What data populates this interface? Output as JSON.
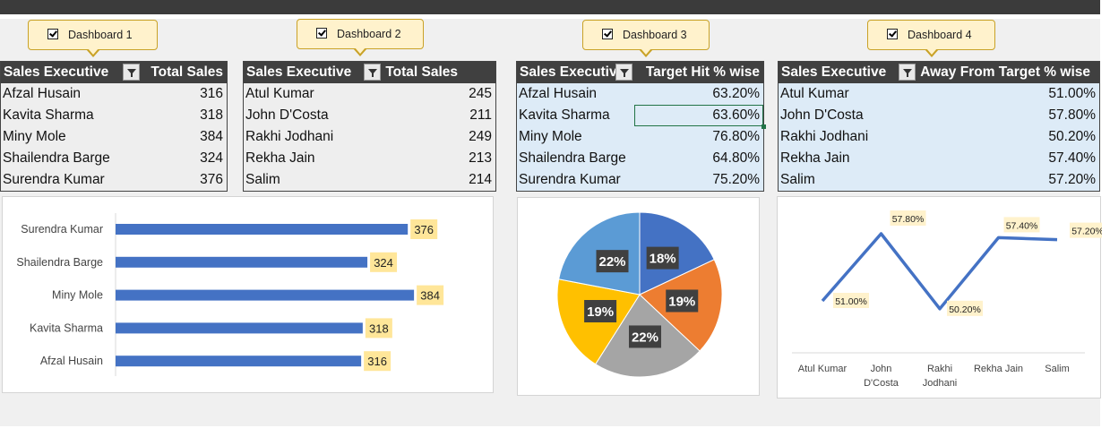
{
  "dashboards": [
    {
      "label": "Dashboard 1",
      "checked": true
    },
    {
      "label": "Dashboard 2",
      "checked": true
    },
    {
      "label": "Dashboard 3",
      "checked": true
    },
    {
      "label": "Dashboard 4",
      "checked": true
    }
  ],
  "tables": [
    {
      "headers": [
        "Sales Executive",
        "Total Sales"
      ],
      "rows": [
        [
          "Afzal Husain",
          "316"
        ],
        [
          "Kavita Sharma",
          "318"
        ],
        [
          "Miny Mole",
          "384"
        ],
        [
          "Shailendra Barge",
          "324"
        ],
        [
          "Surendra Kumar",
          "376"
        ]
      ]
    },
    {
      "headers": [
        "Sales Executive",
        "Total Sales"
      ],
      "rows": [
        [
          "Atul Kumar",
          "245"
        ],
        [
          "John D'Costa",
          "211"
        ],
        [
          "Rakhi Jodhani",
          "249"
        ],
        [
          "Rekha Jain",
          "213"
        ],
        [
          "Salim",
          "214"
        ]
      ]
    },
    {
      "headers": [
        "Sales Executiv",
        "Target Hit % wise"
      ],
      "rows": [
        [
          "Afzal Husain",
          "63.20%"
        ],
        [
          "Kavita Sharma",
          "63.60%"
        ],
        [
          "Miny Mole",
          "76.80%"
        ],
        [
          "Shailendra Barge",
          "64.80%"
        ],
        [
          "Surendra Kumar",
          "75.20%"
        ]
      ]
    },
    {
      "headers": [
        "Sales Executive",
        "Away From Target % wise"
      ],
      "rows": [
        [
          "Atul Kumar",
          "51.00%"
        ],
        [
          "John D'Costa",
          "57.80%"
        ],
        [
          "Rakhi Jodhani",
          "50.20%"
        ],
        [
          "Rekha Jain",
          "57.40%"
        ],
        [
          "Salim",
          "57.20%"
        ]
      ]
    }
  ],
  "chart_data": [
    {
      "type": "bar",
      "orientation": "horizontal",
      "categories": [
        "Surendra Kumar",
        "Shailendra Barge",
        "Miny Mole",
        "Kavita Sharma",
        "Afzal Husain"
      ],
      "values": [
        376,
        324,
        384,
        318,
        316
      ],
      "data_labels": [
        "376",
        "324",
        "384",
        "318",
        "316"
      ],
      "color": "#4472c4",
      "label_bg": "#ffe699"
    },
    {
      "type": "pie",
      "values": [
        18,
        19,
        22,
        19,
        22
      ],
      "labels": [
        "18%",
        "19%",
        "22%",
        "19%",
        "22%"
      ],
      "colors": [
        "#4472c4",
        "#ed7d31",
        "#a5a5a5",
        "#ffc000",
        "#5b9bd5"
      ]
    },
    {
      "type": "line",
      "categories": [
        "Atul Kumar",
        "John D'Costa",
        "Rakhi Jodhani",
        "Rekha Jain",
        "Salim"
      ],
      "category_lines": [
        [
          "Atul Kumar"
        ],
        [
          "John",
          "D'Costa"
        ],
        [
          "Rakhi",
          "Jodhani"
        ],
        [
          "Rekha Jain"
        ],
        [
          "Salim"
        ]
      ],
      "values": [
        51.0,
        57.8,
        50.2,
        57.4,
        57.2
      ],
      "data_labels": [
        "51.00%",
        "57.80%",
        "50.20%",
        "57.40%",
        "57.20%"
      ],
      "color": "#4472c4",
      "label_bg": "#fff2cc"
    }
  ]
}
